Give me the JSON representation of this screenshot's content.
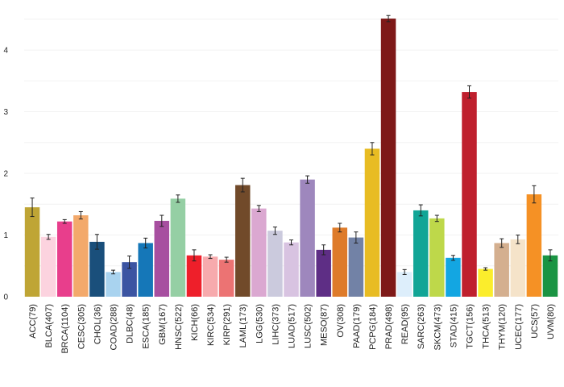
{
  "chart_data": {
    "type": "bar",
    "title": "",
    "xlabel": "",
    "ylabel": "",
    "ylim": [
      0,
      4.55
    ],
    "yticks": [
      0,
      1,
      2,
      3,
      4
    ],
    "grid": true,
    "error_bars": true,
    "categories": [
      "ACC(79)",
      "BLCA(407)",
      "BRCA(1104)",
      "CESC(305)",
      "CHOL(36)",
      "COAD(288)",
      "DLBC(48)",
      "ESCA(185)",
      "GBM(167)",
      "HNSC(522)",
      "KICH(66)",
      "KIRC(534)",
      "KIRP(291)",
      "LAML(173)",
      "LGG(530)",
      "LIHC(373)",
      "LUAD(517)",
      "LUSC(502)",
      "MESO(87)",
      "OV(308)",
      "PAAD(179)",
      "PCPG(184)",
      "PRAD(498)",
      "READ(95)",
      "SARC(263)",
      "SKCM(473)",
      "STAD(415)",
      "TGCT(156)",
      "THCA(513)",
      "THYM(120)",
      "UCEC(177)",
      "UCS(57)",
      "UVM(80)"
    ],
    "values": [
      1.45,
      0.97,
      1.22,
      1.32,
      0.89,
      0.4,
      0.56,
      0.87,
      1.23,
      1.59,
      0.67,
      0.65,
      0.6,
      1.81,
      1.43,
      1.07,
      0.88,
      1.9,
      0.76,
      1.12,
      0.96,
      2.4,
      4.51,
      0.4,
      1.4,
      1.27,
      0.63,
      3.32,
      0.45,
      0.87,
      0.93,
      1.66,
      0.67
    ],
    "errors": [
      0.15,
      0.04,
      0.03,
      0.06,
      0.12,
      0.03,
      0.1,
      0.08,
      0.09,
      0.06,
      0.09,
      0.03,
      0.04,
      0.11,
      0.05,
      0.06,
      0.04,
      0.06,
      0.08,
      0.07,
      0.09,
      0.1,
      0.05,
      0.04,
      0.09,
      0.05,
      0.04,
      0.1,
      0.02,
      0.07,
      0.07,
      0.14,
      0.09
    ],
    "colors": [
      "#bfa535",
      "#fcd3df",
      "#e83e8c",
      "#f3a96b",
      "#1a4f7b",
      "#a9d3ef",
      "#3b54a2",
      "#1577b8",
      "#a74fa0",
      "#95cfa4",
      "#ee1f2a",
      "#f7aaad",
      "#ec7373",
      "#714a2a",
      "#dba8d1",
      "#cbcadd",
      "#d8c3e1",
      "#9e87bd",
      "#5e2e85",
      "#de7b2a",
      "#7282a6",
      "#e8bc23",
      "#7e1918",
      "#ddeefb",
      "#11a596",
      "#bed84a",
      "#13a6e2",
      "#bf202e",
      "#fbed2c",
      "#d4af8f",
      "#f5e3c9",
      "#f59125",
      "#1a9443"
    ]
  }
}
